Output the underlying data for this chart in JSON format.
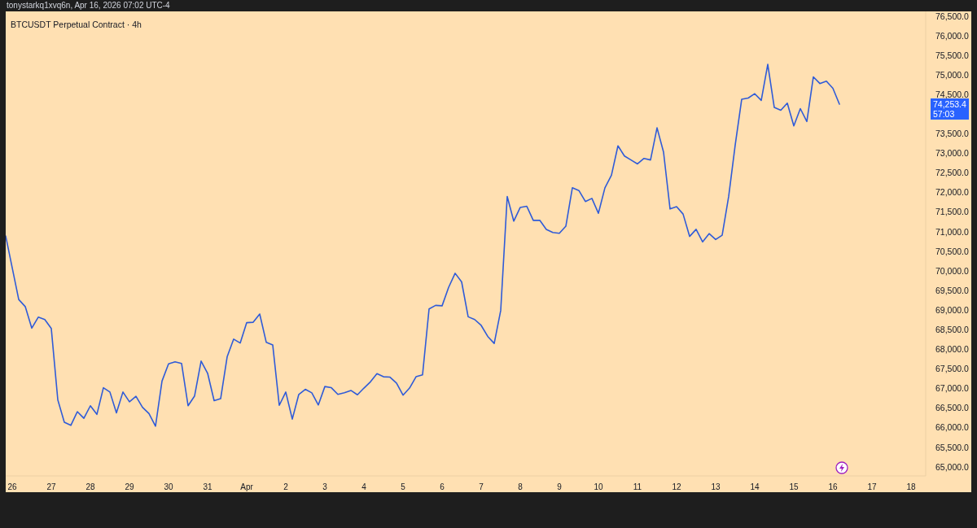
{
  "chart_data": {
    "type": "line",
    "title": "BTCUSDT Perpetual Contract · 4h",
    "subtitle": "tonystarkq1xvq6n, Apr 16, 2026 07:02 UTC-4",
    "x": [
      "2026-03-25T20:00",
      "2026-03-26T00:00",
      "2026-03-26T04:00",
      "2026-03-26T08:00",
      "2026-03-26T12:00",
      "2026-03-26T16:00",
      "2026-03-26T20:00",
      "2026-03-27T00:00",
      "2026-03-27T04:00",
      "2026-03-27T08:00",
      "2026-03-27T12:00",
      "2026-03-27T16:00",
      "2026-03-27T20:00",
      "2026-03-28T00:00",
      "2026-03-28T04:00",
      "2026-03-28T08:00",
      "2026-03-28T12:00",
      "2026-03-28T16:00",
      "2026-03-28T20:00",
      "2026-03-29T00:00",
      "2026-03-29T04:00",
      "2026-03-29T08:00",
      "2026-03-29T12:00",
      "2026-03-29T16:00",
      "2026-03-29T20:00",
      "2026-03-30T00:00",
      "2026-03-30T04:00",
      "2026-03-30T08:00",
      "2026-03-30T12:00",
      "2026-03-30T16:00",
      "2026-03-30T20:00",
      "2026-03-31T00:00",
      "2026-03-31T04:00",
      "2026-03-31T08:00",
      "2026-03-31T12:00",
      "2026-03-31T16:00",
      "2026-03-31T20:00",
      "2026-04-01T00:00",
      "2026-04-01T04:00",
      "2026-04-01T08:00",
      "2026-04-01T12:00",
      "2026-04-01T16:00",
      "2026-04-01T20:00",
      "2026-04-02T00:00",
      "2026-04-02T04:00",
      "2026-04-02T08:00",
      "2026-04-02T12:00",
      "2026-04-02T16:00",
      "2026-04-02T20:00",
      "2026-04-03T00:00",
      "2026-04-03T04:00",
      "2026-04-03T08:00",
      "2026-04-03T12:00",
      "2026-04-03T16:00",
      "2026-04-03T20:00",
      "2026-04-04T00:00",
      "2026-04-04T04:00",
      "2026-04-04T08:00",
      "2026-04-04T12:00",
      "2026-04-04T16:00",
      "2026-04-04T20:00",
      "2026-04-05T00:00",
      "2026-04-05T04:00",
      "2026-04-05T08:00",
      "2026-04-05T12:00",
      "2026-04-05T16:00",
      "2026-04-05T20:00",
      "2026-04-06T00:00",
      "2026-04-06T04:00",
      "2026-04-06T08:00",
      "2026-04-06T12:00",
      "2026-04-06T16:00",
      "2026-04-06T20:00",
      "2026-04-07T00:00",
      "2026-04-07T04:00",
      "2026-04-07T08:00",
      "2026-04-07T12:00",
      "2026-04-07T16:00",
      "2026-04-07T20:00",
      "2026-04-08T00:00",
      "2026-04-08T04:00",
      "2026-04-08T08:00",
      "2026-04-08T12:00",
      "2026-04-08T16:00",
      "2026-04-08T20:00",
      "2026-04-09T00:00",
      "2026-04-09T04:00",
      "2026-04-09T08:00",
      "2026-04-09T12:00",
      "2026-04-09T16:00",
      "2026-04-09T20:00",
      "2026-04-10T00:00",
      "2026-04-10T04:00",
      "2026-04-10T08:00",
      "2026-04-10T12:00",
      "2026-04-10T16:00",
      "2026-04-10T20:00",
      "2026-04-11T00:00",
      "2026-04-11T04:00",
      "2026-04-11T08:00",
      "2026-04-11T12:00",
      "2026-04-11T16:00",
      "2026-04-11T20:00",
      "2026-04-12T00:00",
      "2026-04-12T04:00",
      "2026-04-12T08:00",
      "2026-04-12T12:00",
      "2026-04-12T16:00",
      "2026-04-12T20:00",
      "2026-04-13T00:00",
      "2026-04-13T04:00",
      "2026-04-13T08:00",
      "2026-04-13T12:00",
      "2026-04-13T16:00",
      "2026-04-13T20:00",
      "2026-04-14T00:00",
      "2026-04-14T04:00",
      "2026-04-14T08:00",
      "2026-04-14T12:00",
      "2026-04-14T16:00",
      "2026-04-14T20:00",
      "2026-04-15T00:00",
      "2026-04-15T04:00",
      "2026-04-15T08:00",
      "2026-04-15T12:00",
      "2026-04-15T16:00",
      "2026-04-15T20:00",
      "2026-04-16T00:00",
      "2026-04-16T04:00"
    ],
    "values": [
      70890,
      70080,
      69270,
      69090,
      68540,
      68820,
      68760,
      68530,
      66710,
      66140,
      66060,
      66410,
      66240,
      66560,
      66340,
      67020,
      66910,
      66380,
      66910,
      66660,
      66800,
      66520,
      66360,
      66040,
      67190,
      67630,
      67680,
      67640,
      66560,
      66810,
      67700,
      67390,
      66690,
      66740,
      67810,
      68260,
      68160,
      68680,
      68690,
      68900,
      68180,
      68110,
      66570,
      66910,
      66220,
      66850,
      66980,
      66890,
      66580,
      67050,
      67020,
      66850,
      66890,
      66950,
      66840,
      67010,
      67170,
      67380,
      67300,
      67290,
      67140,
      66830,
      67010,
      67300,
      67350,
      69030,
      69120,
      69110,
      69580,
      69940,
      69720,
      68830,
      68760,
      68610,
      68330,
      68150,
      68990,
      71900,
      71270,
      71620,
      71650,
      71290,
      71290,
      71060,
      70980,
      70960,
      71140,
      72120,
      72050,
      71770,
      71850,
      71470,
      72120,
      72440,
      73190,
      72930,
      72830,
      72730,
      72870,
      72830,
      73650,
      73030,
      71580,
      71640,
      71450,
      70880,
      71060,
      70740,
      70950,
      70800,
      70910,
      71900,
      73210,
      74380,
      74410,
      74520,
      74350,
      75270,
      74170,
      74100,
      74280,
      73700,
      74140,
      73810,
      74950,
      74780,
      74840,
      74660,
      74253.4
    ],
    "color": "#2f5bd8",
    "xlim": [
      "2026-03-25T20:00",
      "2026-04-18T09:00"
    ],
    "xticks": [
      {
        "value": "2026-03-26",
        "label": "26"
      },
      {
        "value": "2026-03-27",
        "label": "27"
      },
      {
        "value": "2026-03-28",
        "label": "28"
      },
      {
        "value": "2026-03-29",
        "label": "29"
      },
      {
        "value": "2026-03-30",
        "label": "30"
      },
      {
        "value": "2026-03-31",
        "label": "31"
      },
      {
        "value": "2026-04-01",
        "label": "Apr"
      },
      {
        "value": "2026-04-02",
        "label": "2"
      },
      {
        "value": "2026-04-03",
        "label": "3"
      },
      {
        "value": "2026-04-04",
        "label": "4"
      },
      {
        "value": "2026-04-05",
        "label": "5"
      },
      {
        "value": "2026-04-06",
        "label": "6"
      },
      {
        "value": "2026-04-07",
        "label": "7"
      },
      {
        "value": "2026-04-08",
        "label": "8"
      },
      {
        "value": "2026-04-09",
        "label": "9"
      },
      {
        "value": "2026-04-10",
        "label": "10"
      },
      {
        "value": "2026-04-11",
        "label": "11"
      },
      {
        "value": "2026-04-12",
        "label": "12"
      },
      {
        "value": "2026-04-13",
        "label": "13"
      },
      {
        "value": "2026-04-14",
        "label": "14"
      },
      {
        "value": "2026-04-15",
        "label": "15"
      },
      {
        "value": "2026-04-16",
        "label": "16"
      },
      {
        "value": "2026-04-17",
        "label": "17"
      },
      {
        "value": "2026-04-18",
        "label": "18"
      }
    ],
    "ylim": [
      64770,
      76620
    ],
    "yticks": [
      {
        "value": 65000,
        "label": "65,000.0"
      },
      {
        "value": 65500,
        "label": "65,500.0"
      },
      {
        "value": 66000,
        "label": "66,000.0"
      },
      {
        "value": 66500,
        "label": "66,500.0"
      },
      {
        "value": 67000,
        "label": "67,000.0"
      },
      {
        "value": 67500,
        "label": "67,500.0"
      },
      {
        "value": 68000,
        "label": "68,000.0"
      },
      {
        "value": 68500,
        "label": "68,500.0"
      },
      {
        "value": 69000,
        "label": "69,000.0"
      },
      {
        "value": 69500,
        "label": "69,500.0"
      },
      {
        "value": 70000,
        "label": "70,000.0"
      },
      {
        "value": 70500,
        "label": "70,500.0"
      },
      {
        "value": 71000,
        "label": "71,000.0"
      },
      {
        "value": 71500,
        "label": "71,500.0"
      },
      {
        "value": 72000,
        "label": "72,000.0"
      },
      {
        "value": 72500,
        "label": "72,500.0"
      },
      {
        "value": 73000,
        "label": "73,000.0"
      },
      {
        "value": 73500,
        "label": "73,500.0"
      },
      {
        "value": 74500,
        "label": "74,500.0"
      },
      {
        "value": 75000,
        "label": "75,000.0"
      },
      {
        "value": 75500,
        "label": "75,500.0"
      },
      {
        "value": 76000,
        "label": "76,000.0"
      },
      {
        "value": 76500,
        "label": "76,500.0"
      }
    ],
    "annotations": [
      "74,253.4",
      "57:03"
    ]
  }
}
